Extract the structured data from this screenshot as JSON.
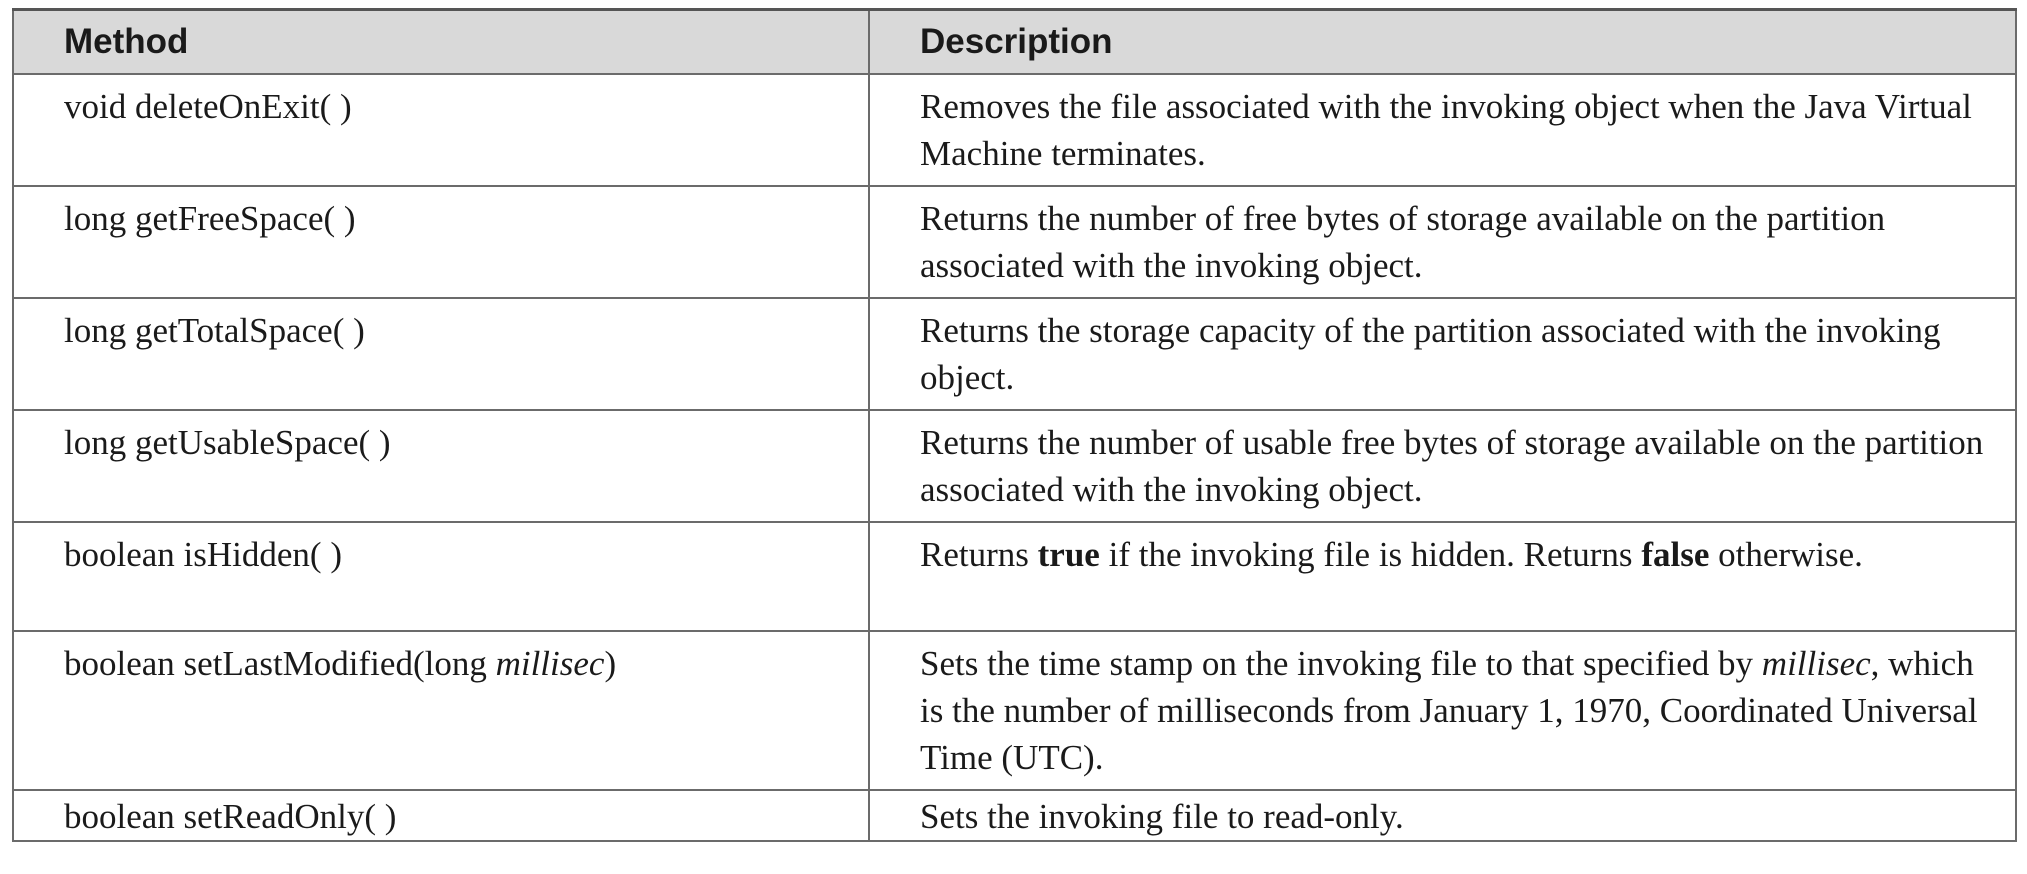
{
  "table": {
    "headers": [
      "Method",
      "Description"
    ],
    "rows": [
      {
        "method": "void deleteOnExit( )",
        "description": "Removes the file associated with the invoking object when the Java Virtual Machine terminates."
      },
      {
        "method": "long getFreeSpace( )",
        "description": "Returns the number of free bytes of storage available on the partition associated with the invoking object."
      },
      {
        "method": "long getTotalSpace( )",
        "description": "Returns the storage capacity of the partition associated with the invoking object."
      },
      {
        "method": "long getUsableSpace( )",
        "description": "Returns the number of usable free bytes of storage available on the partition associated with the invoking object."
      },
      {
        "method": "boolean isHidden( )",
        "description_parts": {
          "p1": "Returns ",
          "b1": "true",
          "p2": " if the invoking file is hidden. Returns ",
          "b2": "false",
          "p3": " otherwise."
        }
      },
      {
        "method_parts": {
          "prefix": "boolean setLastModified(long ",
          "param": "millisec",
          "suffix": ")"
        },
        "description_parts": {
          "param": "millisec",
          "rest": ", which is the number of milliseconds from January 1, 1970, Coordinated Universal Time (UTC).",
          "p1": "Sets the time stamp on the invoking file to that specified by "
        }
      },
      {
        "method": "boolean setReadOnly( )",
        "description": "Sets the invoking file to read-only."
      }
    ]
  }
}
